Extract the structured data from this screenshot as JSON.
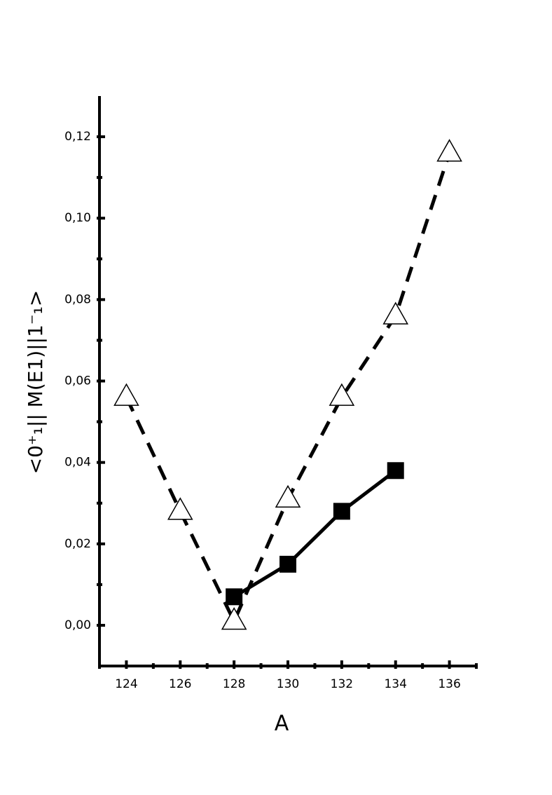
{
  "chart_data": {
    "type": "line",
    "x_label": "A",
    "y_label": "<0⁺₁|| M(E1)||1⁻₁>",
    "xlim": [
      123,
      137
    ],
    "xticks": [
      124,
      126,
      128,
      130,
      132,
      134,
      136
    ],
    "ylim": [
      -0.01,
      0.13
    ],
    "yticks": [
      {
        "value": 0,
        "label": "0,00"
      },
      {
        "value": 0.02,
        "label": "0,02"
      },
      {
        "value": 0.04,
        "label": "0,04"
      },
      {
        "value": 0.06,
        "label": "0,06"
      },
      {
        "value": 0.08,
        "label": "0,08"
      },
      {
        "value": 0.1,
        "label": "0,10"
      },
      {
        "value": 0.12,
        "label": "0,12"
      }
    ],
    "series": [
      {
        "color": "#000000",
        "marker": "open-triangle",
        "linestyle": "dashed",
        "x": [
          124,
          126,
          128,
          130,
          132,
          134,
          136
        ],
        "values": [
          0.056,
          0.028,
          0.001,
          0.031,
          0.056,
          0.076,
          0.116
        ]
      },
      {
        "color": "#000000",
        "marker": "filled-square",
        "linestyle": "solid",
        "x": [
          128,
          130,
          132,
          134
        ],
        "values": [
          0.007,
          0.015,
          0.028,
          0.038
        ]
      }
    ]
  }
}
